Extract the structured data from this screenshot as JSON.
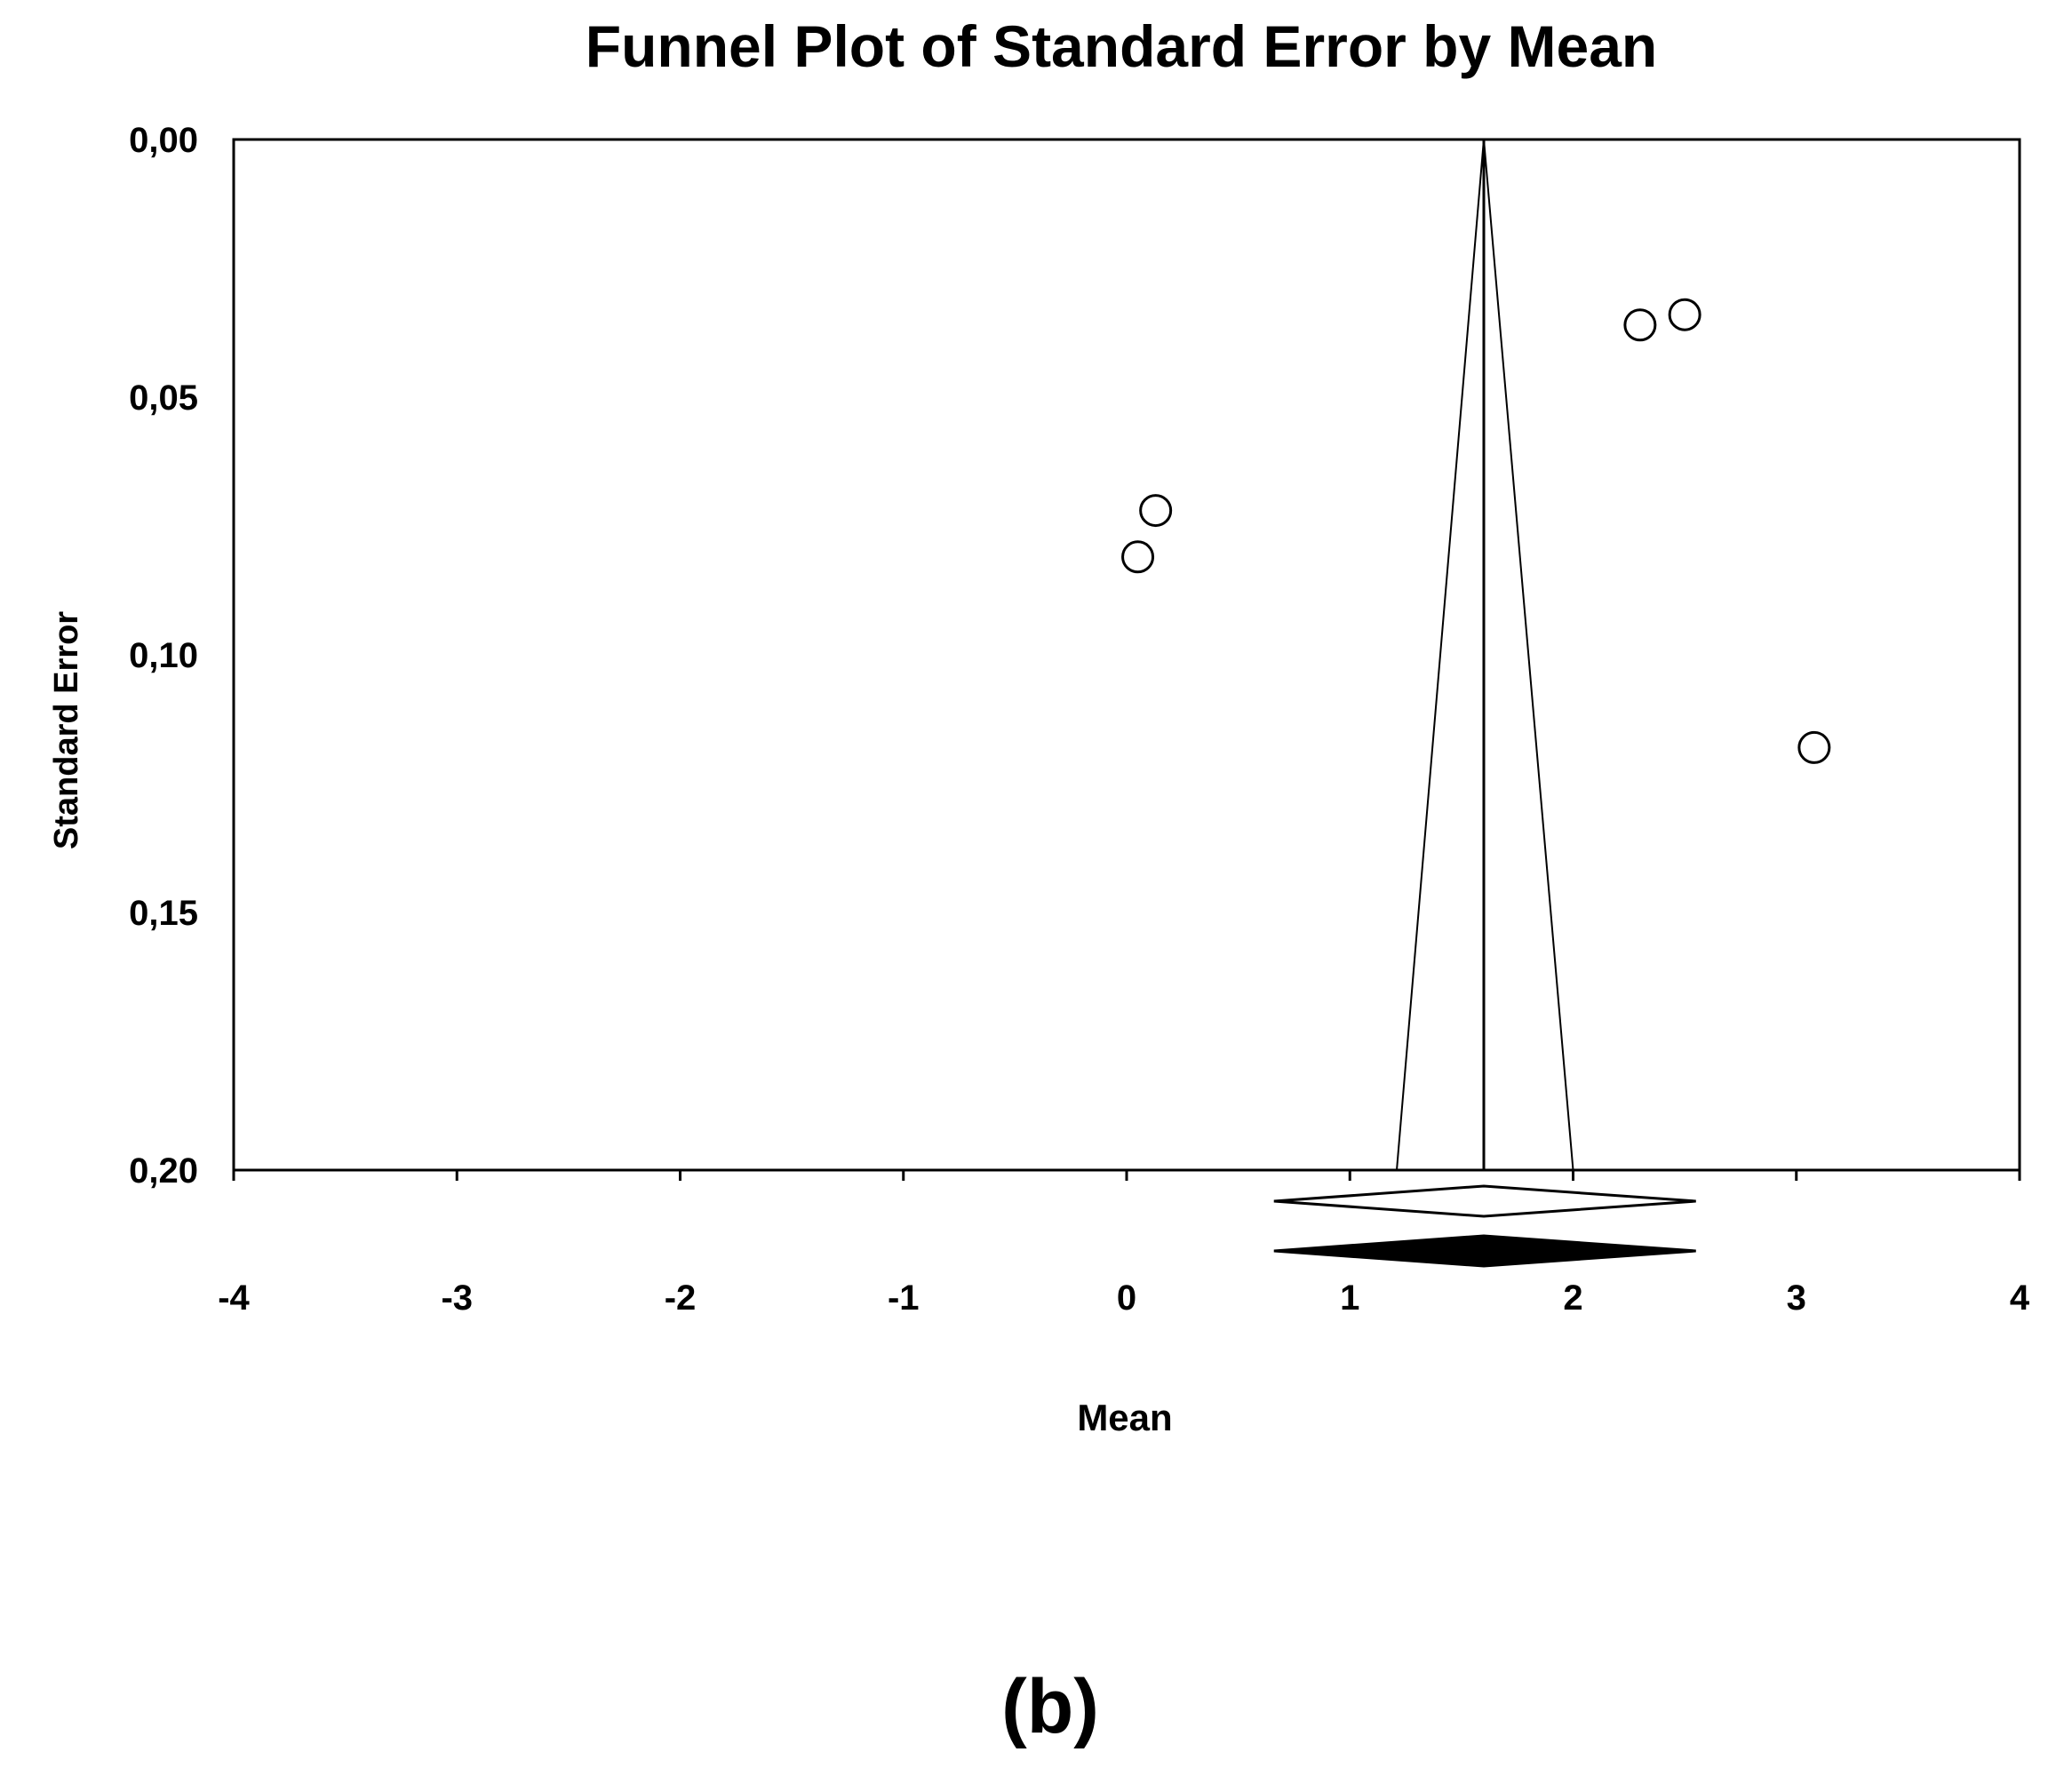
{
  "chart_data": {
    "type": "scatter",
    "title": "Funnel Plot of Standard Error by Mean",
    "xlabel": "Mean",
    "ylabel": "Standard Error",
    "xlim": [
      -4,
      4
    ],
    "ylim": [
      0.0,
      0.2
    ],
    "y_inverted": true,
    "x_ticks": [
      "-4",
      "-3",
      "-2",
      "-1",
      "0",
      "1",
      "2",
      "3",
      "4"
    ],
    "y_ticks": [
      "0,00",
      "0,05",
      "0,10",
      "0,15",
      "0,20"
    ],
    "points": [
      {
        "x": 2.3,
        "y": 0.036
      },
      {
        "x": 2.5,
        "y": 0.034
      },
      {
        "x": 0.13,
        "y": 0.072
      },
      {
        "x": 0.05,
        "y": 0.081
      },
      {
        "x": 3.08,
        "y": 0.118
      }
    ],
    "summary_mean": 1.6,
    "funnel_bottom_x": [
      1.21,
      2.0
    ],
    "diamonds": [
      {
        "fill": "open",
        "center": 1.6,
        "lower": 0.66,
        "upper": 2.55
      },
      {
        "fill": "filled",
        "center": 1.6,
        "lower": 0.66,
        "upper": 2.55
      }
    ],
    "grid": false,
    "legend": "none"
  },
  "caption": "(b)"
}
